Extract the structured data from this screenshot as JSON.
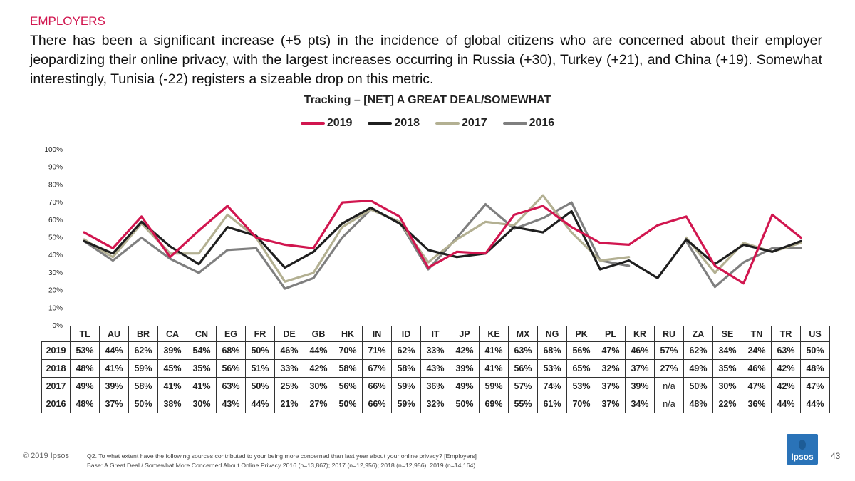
{
  "header": {
    "section": "EMPLOYERS",
    "headline": "There has been a significant increase (+5 pts) in the incidence of global citizens who are concerned about their employer jeopardizing their online privacy, with the largest increases occurring in Russia (+30), Turkey (+21), and China (+19). Somewhat interestingly, Tunisia (-22) registers a sizeable drop on this metric."
  },
  "chart_data": {
    "type": "line",
    "title": "Tracking – [NET] A GREAT DEAL/SOMEWHAT",
    "categories": [
      "TL",
      "AU",
      "BR",
      "CA",
      "CN",
      "EG",
      "FR",
      "DE",
      "GB",
      "HK",
      "IN",
      "ID",
      "IT",
      "JP",
      "KE",
      "MX",
      "NG",
      "PK",
      "PL",
      "KR",
      "RU",
      "ZA",
      "SE",
      "TN",
      "TR",
      "US"
    ],
    "ylim": [
      0,
      100
    ],
    "yticks": [
      "0%",
      "10%",
      "20%",
      "30%",
      "40%",
      "50%",
      "60%",
      "70%",
      "80%",
      "90%",
      "100%"
    ],
    "series": [
      {
        "name": "2019",
        "color": "#d1164f",
        "values": [
          53,
          44,
          62,
          39,
          54,
          68,
          50,
          46,
          44,
          70,
          71,
          62,
          33,
          42,
          41,
          63,
          68,
          56,
          47,
          46,
          57,
          62,
          34,
          24,
          63,
          50
        ]
      },
      {
        "name": "2018",
        "color": "#1f1f1f",
        "values": [
          48,
          41,
          59,
          45,
          35,
          56,
          51,
          33,
          42,
          58,
          67,
          58,
          43,
          39,
          41,
          56,
          53,
          65,
          32,
          37,
          27,
          49,
          35,
          46,
          42,
          48
        ]
      },
      {
        "name": "2017",
        "color": "#b3b092",
        "values": [
          49,
          39,
          58,
          41,
          41,
          63,
          50,
          25,
          30,
          56,
          66,
          59,
          36,
          49,
          59,
          57,
          74,
          53,
          37,
          39,
          null,
          50,
          30,
          47,
          42,
          47
        ]
      },
      {
        "name": "2016",
        "color": "#7f7f7f",
        "values": [
          48,
          37,
          50,
          38,
          30,
          43,
          44,
          21,
          27,
          50,
          66,
          59,
          32,
          50,
          69,
          55,
          61,
          70,
          37,
          34,
          null,
          48,
          22,
          36,
          44,
          44
        ]
      }
    ],
    "table": {
      "rows": [
        {
          "label": "2019",
          "cells": [
            "53%",
            "44%",
            "62%",
            "39%",
            "54%",
            "68%",
            "50%",
            "46%",
            "44%",
            "70%",
            "71%",
            "62%",
            "33%",
            "42%",
            "41%",
            "63%",
            "68%",
            "56%",
            "47%",
            "46%",
            "57%",
            "62%",
            "34%",
            "24%",
            "63%",
            "50%"
          ]
        },
        {
          "label": "2018",
          "cells": [
            "48%",
            "41%",
            "59%",
            "45%",
            "35%",
            "56%",
            "51%",
            "33%",
            "42%",
            "58%",
            "67%",
            "58%",
            "43%",
            "39%",
            "41%",
            "56%",
            "53%",
            "65%",
            "32%",
            "37%",
            "27%",
            "49%",
            "35%",
            "46%",
            "42%",
            "48%"
          ]
        },
        {
          "label": "2017",
          "cells": [
            "49%",
            "39%",
            "58%",
            "41%",
            "41%",
            "63%",
            "50%",
            "25%",
            "30%",
            "56%",
            "66%",
            "59%",
            "36%",
            "49%",
            "59%",
            "57%",
            "74%",
            "53%",
            "37%",
            "39%",
            "n/a",
            "50%",
            "30%",
            "47%",
            "42%",
            "47%"
          ]
        },
        {
          "label": "2016",
          "cells": [
            "48%",
            "37%",
            "50%",
            "38%",
            "30%",
            "43%",
            "44%",
            "21%",
            "27%",
            "50%",
            "66%",
            "59%",
            "32%",
            "50%",
            "69%",
            "55%",
            "61%",
            "70%",
            "37%",
            "34%",
            "n/a",
            "48%",
            "22%",
            "36%",
            "44%",
            "44%"
          ]
        }
      ]
    }
  },
  "footer": {
    "copyright": "© 2019 Ipsos",
    "question": "Q2. To what extent have the following sources contributed to your being more concerned than last year about your online privacy? [Employers]",
    "base": "Base: A Great Deal / Somewhat More Concerned About Online Privacy 2016 (n=13,867); 2017 (n=12,956); 2018 (n=12,956); 2019 (n=14,164)",
    "logo_text": "Ipsos",
    "page_number": "43"
  }
}
